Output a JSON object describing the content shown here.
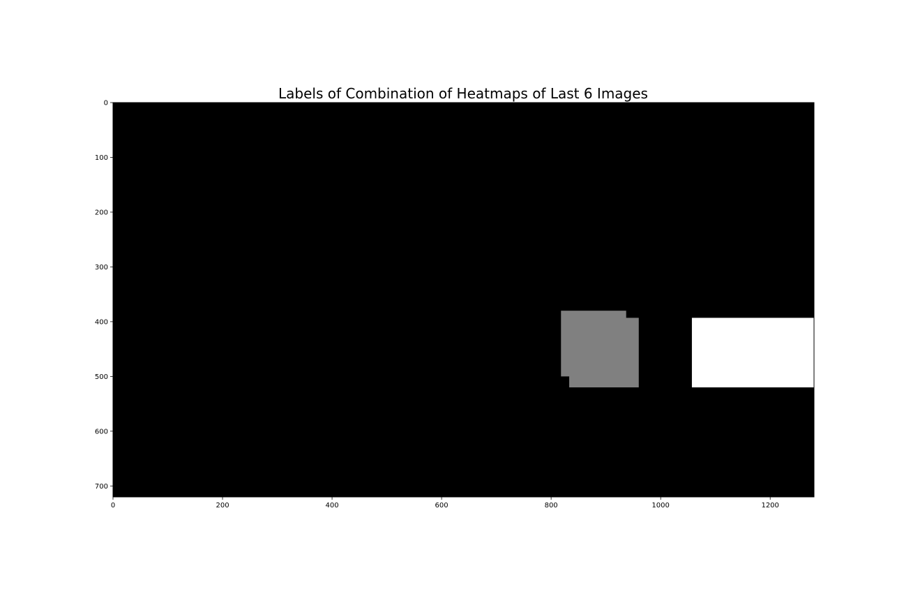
{
  "chart_data": {
    "type": "heatmap",
    "title": "Labels of Combination of Heatmaps of Last 6 Images",
    "xlabel": "",
    "ylabel": "",
    "image_width": 1280,
    "image_height": 720,
    "xlim": [
      0,
      1280
    ],
    "ylim": [
      720,
      0
    ],
    "colormap": "gray",
    "background_value": 0,
    "x_ticks": [
      0,
      200,
      400,
      600,
      800,
      1000,
      1200
    ],
    "y_ticks": [
      0,
      100,
      200,
      300,
      400,
      500,
      600,
      700
    ],
    "regions": [
      {
        "label": 1,
        "value": 1,
        "color": "#808080",
        "x": [
          818,
          937
        ],
        "y": [
          380,
          500
        ]
      },
      {
        "label": 1,
        "value": 1,
        "color": "#808080",
        "x": [
          833,
          960
        ],
        "y": [
          393,
          520
        ]
      },
      {
        "label": 2,
        "value": 2,
        "color": "#ffffff",
        "x": [
          1057,
          1280
        ],
        "y": [
          393,
          520
        ]
      }
    ],
    "colors": {
      "background": "#000000",
      "label_1": "#808080",
      "label_2": "#ffffff",
      "axis": "#000000"
    }
  }
}
